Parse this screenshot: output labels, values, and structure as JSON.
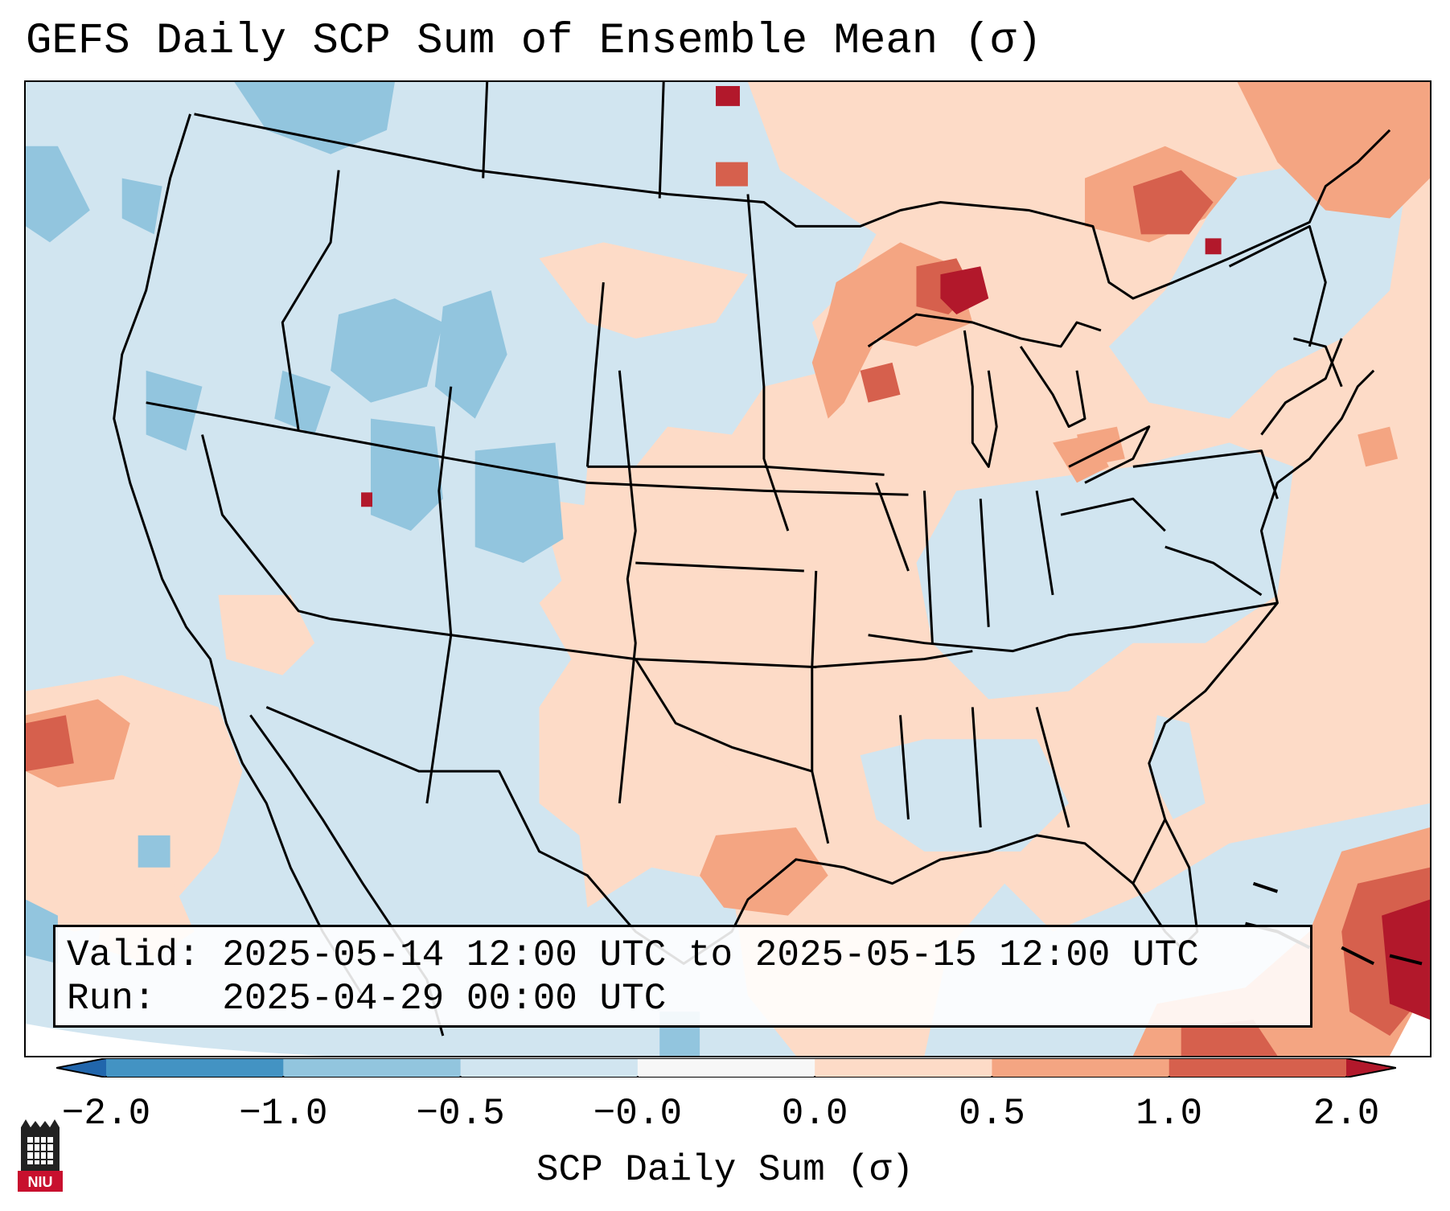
{
  "title": "GEFS Daily SCP Sum of Ensemble Mean (σ)",
  "info": {
    "valid_line": "Valid: 2025-05-14 12:00 UTC to 2025-05-15 12:00 UTC",
    "run_line": "Run:   2025-04-29 00:00 UTC"
  },
  "colorbar": {
    "label": "SCP Daily Sum (σ)",
    "ticks": [
      "−2.0",
      "−1.0",
      "−0.5",
      "−0.0",
      "0.0",
      "0.5",
      "1.0",
      "2.0"
    ],
    "colors": [
      "#4393c3",
      "#92c5de",
      "#d1e5f0",
      "#f7f7f7",
      "#fddbc7",
      "#f4a582",
      "#d6604d",
      "#b2182b"
    ],
    "under_color": "#2166ac",
    "over_color": "#b2182b"
  },
  "logo": {
    "text": "NIU",
    "icon": "niu-castle-icon"
  },
  "colors": {
    "background_field": "#d1e5f0",
    "weak_positive": "#fddbc7",
    "moderate_positive": "#f4a582",
    "strong_positive": "#d6604d",
    "extreme_positive": "#b2182b",
    "weak_negative": "#92c5de"
  }
}
